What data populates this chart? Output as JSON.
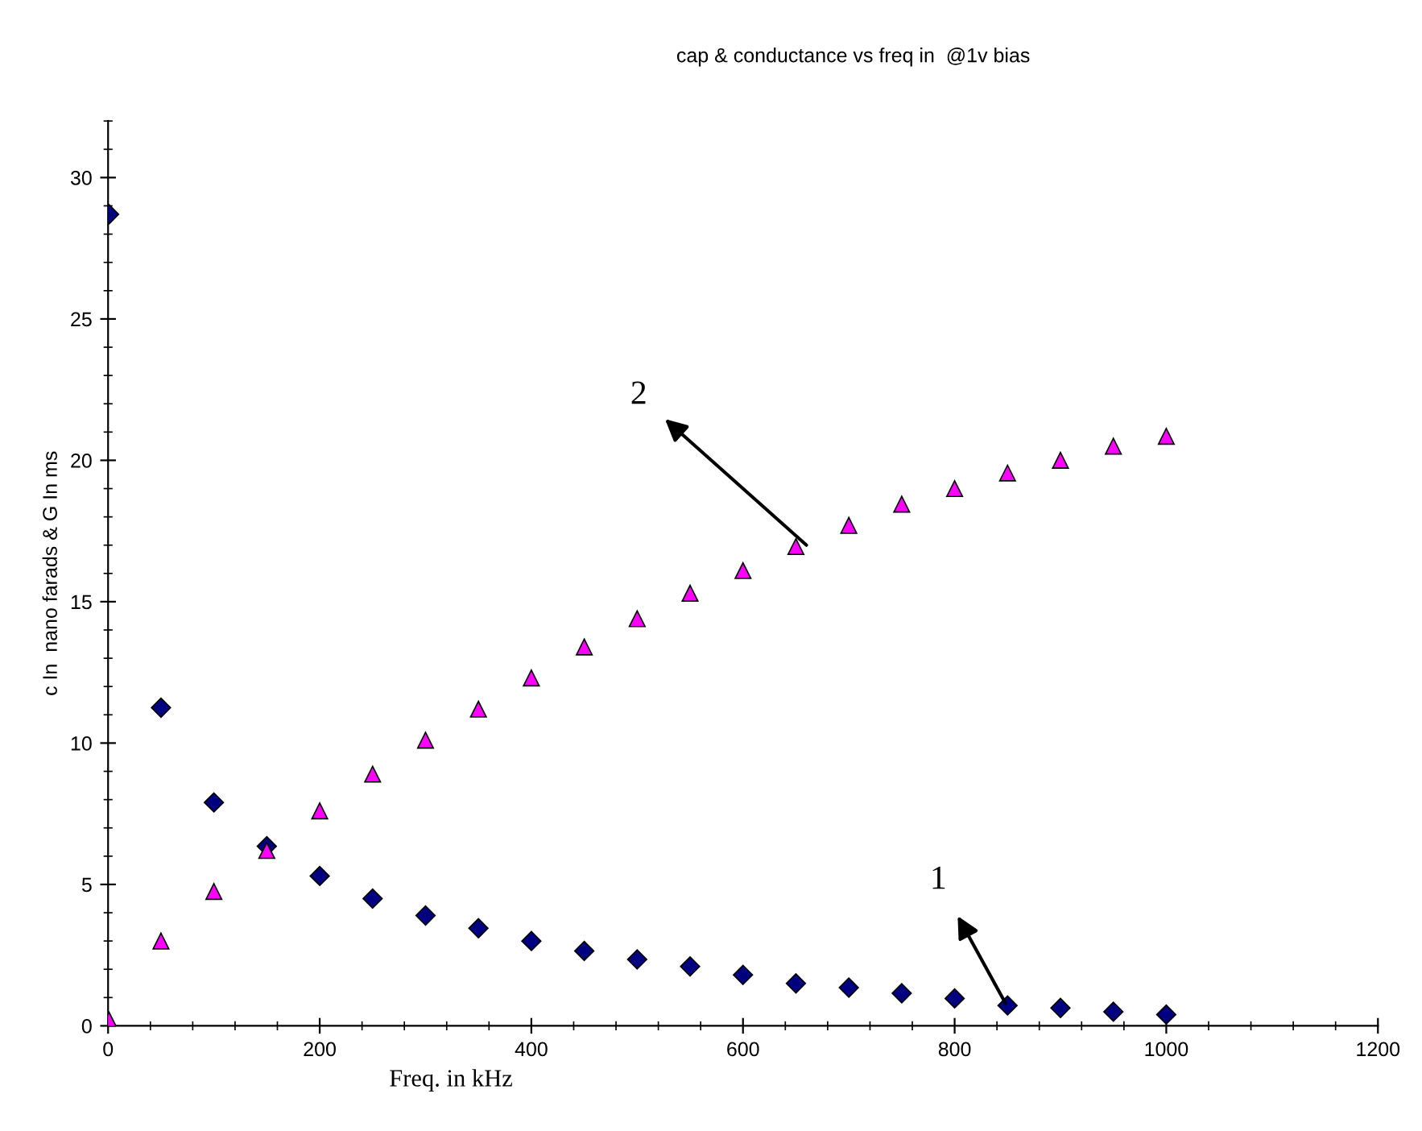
{
  "chart_data": {
    "type": "scatter",
    "title": "cap & conductance vs freq in  @1v bias",
    "xlabel": "Freq. in kHz",
    "ylabel": "c In  nano farads & G In ms",
    "x": [
      1,
      50,
      100,
      150,
      200,
      250,
      300,
      350,
      400,
      450,
      500,
      550,
      600,
      650,
      700,
      750,
      800,
      850,
      900,
      950,
      1000
    ],
    "series": [
      {
        "color": "#000080",
        "marker": "diamond",
        "values": [
          28.7,
          11.25,
          7.9,
          6.35,
          5.3,
          4.5,
          3.9,
          3.45,
          3.0,
          2.65,
          2.35,
          2.1,
          1.8,
          1.5,
          1.35,
          1.15,
          0.97,
          0.72,
          0.63,
          0.5,
          0.4
        ]
      },
      {
        "color": "#ff00ff",
        "marker": "triangle",
        "values": [
          0.2,
          3.0,
          4.75,
          6.2,
          7.6,
          8.9,
          10.1,
          11.2,
          12.3,
          13.4,
          14.4,
          15.3,
          16.1,
          16.95,
          17.7,
          18.45,
          19.0,
          19.55,
          20.0,
          20.5,
          20.85
        ]
      }
    ],
    "annotations": [
      {
        "text": "2",
        "x": 660,
        "y": 17
      },
      {
        "text": "1",
        "x": 848,
        "y": 0.8
      }
    ],
    "xlim": [
      0,
      1200
    ],
    "xticks": [
      0,
      200,
      400,
      600,
      800,
      1000,
      1200
    ],
    "ylim": [
      0,
      32
    ],
    "yticks": [
      0,
      5,
      10,
      15,
      20,
      25,
      30
    ],
    "grid": false,
    "legend": false
  }
}
